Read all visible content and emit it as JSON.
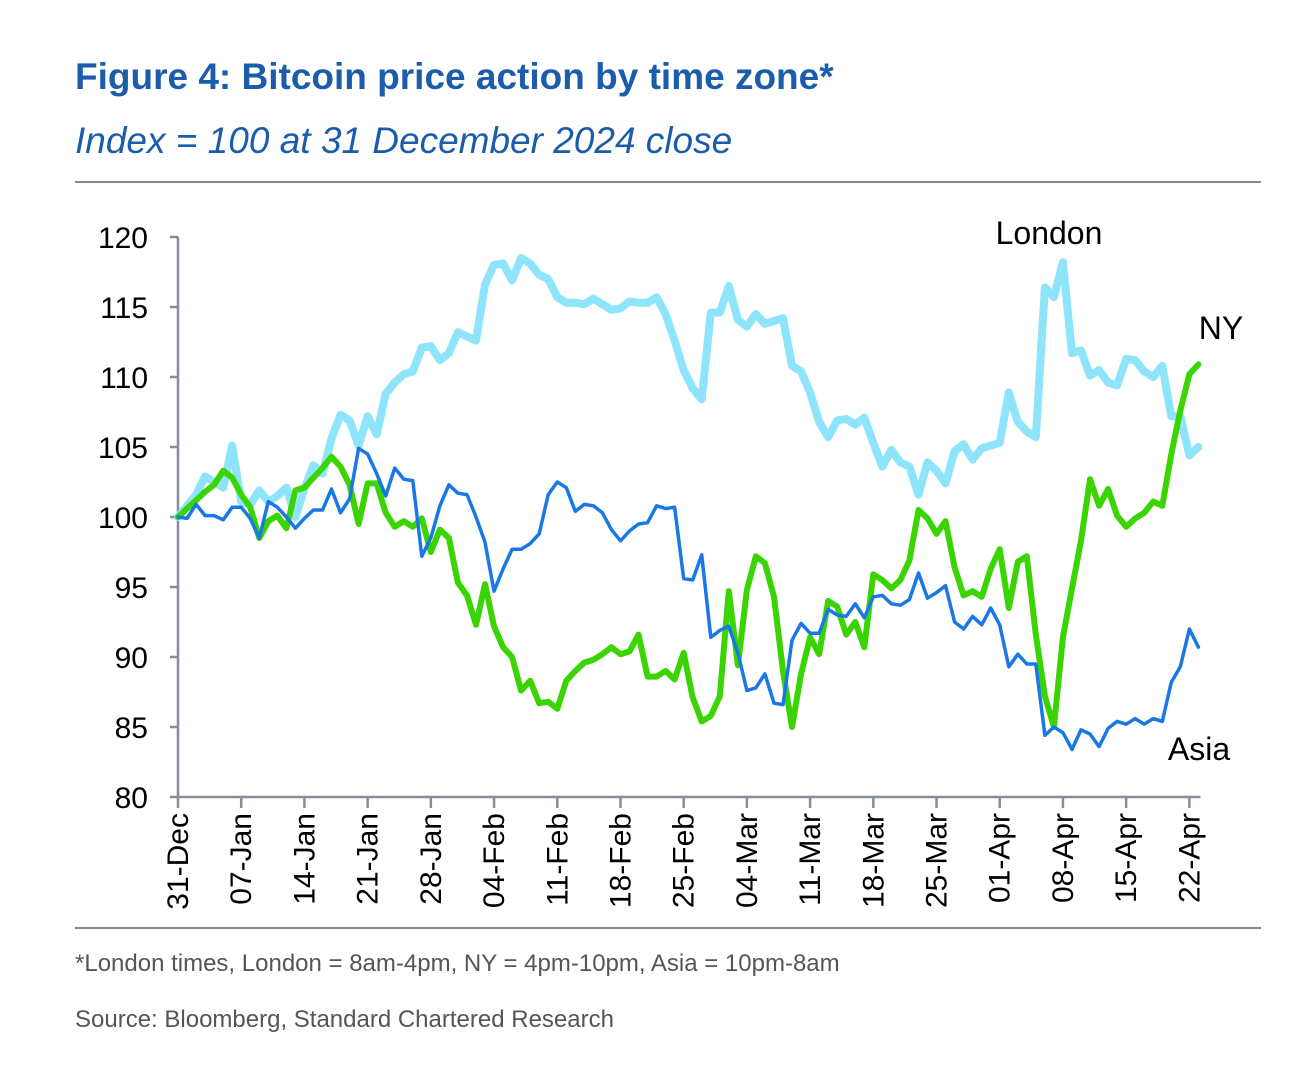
{
  "header": {
    "title": "Figure 4: Bitcoin price action by time zone*",
    "subtitle": "Index = 100 at 31 December 2024 close"
  },
  "footer": {
    "note": "*London times, London = 8am-4pm, NY = 4pm-10pm, Asia = 10pm-8am",
    "source": "Source: Bloomberg, Standard Chartered Research"
  },
  "chart_data": {
    "type": "line",
    "title": "",
    "xlabel": "",
    "ylabel": "",
    "ylim": [
      80,
      120
    ],
    "yticks": [
      80,
      85,
      90,
      95,
      100,
      105,
      110,
      115,
      120
    ],
    "xticks": [
      "31-Dec",
      "07-Jan",
      "14-Jan",
      "21-Jan",
      "28-Jan",
      "04-Feb",
      "11-Feb",
      "18-Feb",
      "25-Feb",
      "04-Mar",
      "11-Mar",
      "18-Mar",
      "25-Mar",
      "01-Apr",
      "08-Apr",
      "15-Apr",
      "22-Apr"
    ],
    "grid": false,
    "legend": "inline labels",
    "x": [
      "31-Dec",
      "01-Jan",
      "02-Jan",
      "03-Jan",
      "04-Jan",
      "05-Jan",
      "06-Jan",
      "07-Jan",
      "08-Jan",
      "09-Jan",
      "10-Jan",
      "11-Jan",
      "12-Jan",
      "13-Jan",
      "14-Jan",
      "15-Jan",
      "16-Jan",
      "17-Jan",
      "18-Jan",
      "19-Jan",
      "20-Jan",
      "21-Jan",
      "22-Jan",
      "23-Jan",
      "24-Jan",
      "25-Jan",
      "26-Jan",
      "27-Jan",
      "28-Jan",
      "29-Jan",
      "30-Jan",
      "31-Jan",
      "01-Feb",
      "02-Feb",
      "03-Feb",
      "04-Feb",
      "05-Feb",
      "06-Feb",
      "07-Feb",
      "08-Feb",
      "09-Feb",
      "10-Feb",
      "11-Feb",
      "12-Feb",
      "13-Feb",
      "14-Feb",
      "15-Feb",
      "16-Feb",
      "17-Feb",
      "18-Feb",
      "19-Feb",
      "20-Feb",
      "21-Feb",
      "22-Feb",
      "23-Feb",
      "24-Feb",
      "25-Feb",
      "26-Feb",
      "27-Feb",
      "28-Feb",
      "01-Mar",
      "02-Mar",
      "03-Mar",
      "04-Mar",
      "05-Mar",
      "06-Mar",
      "07-Mar",
      "08-Mar",
      "09-Mar",
      "10-Mar",
      "11-Mar",
      "12-Mar",
      "13-Mar",
      "14-Mar",
      "15-Mar",
      "16-Mar",
      "17-Mar",
      "18-Mar",
      "19-Mar",
      "20-Mar",
      "21-Mar",
      "22-Mar",
      "23-Mar",
      "24-Mar",
      "25-Mar",
      "26-Mar",
      "27-Mar",
      "28-Mar",
      "29-Mar",
      "30-Mar",
      "31-Mar",
      "01-Apr",
      "02-Apr",
      "03-Apr",
      "04-Apr",
      "05-Apr",
      "06-Apr",
      "07-Apr",
      "08-Apr",
      "09-Apr",
      "10-Apr",
      "11-Apr",
      "12-Apr",
      "13-Apr",
      "14-Apr",
      "15-Apr",
      "16-Apr",
      "17-Apr",
      "18-Apr",
      "19-Apr",
      "20-Apr",
      "21-Apr",
      "22-Apr",
      "23-Apr"
    ],
    "series": [
      {
        "name": "London",
        "color": "#8de4fb",
        "values": [
          100,
          100.8,
          101.6,
          102.9,
          102.5,
          102.1,
          105.1,
          101.1,
          100.9,
          101.9,
          101.1,
          101.5,
          102.1,
          100,
          102,
          103.7,
          103.1,
          105.6,
          107.3,
          106.9,
          105.1,
          107.2,
          105.9,
          108.8,
          109.6,
          110.2,
          110.4,
          112.1,
          112.2,
          111.2,
          111.7,
          113.2,
          112.9,
          112.6,
          116.6,
          118,
          118.1,
          116.9,
          118.5,
          118.1,
          117.3,
          117,
          115.7,
          115.3,
          115.3,
          115.2,
          115.6,
          115.2,
          114.8,
          114.9,
          115.4,
          115.3,
          115.3,
          115.7,
          114.5,
          112.6,
          110.5,
          109.2,
          108.4,
          114.6,
          114.6,
          116.5,
          114.1,
          113.6,
          114.5,
          113.8,
          114,
          114.2,
          110.8,
          110.4,
          108.9,
          106.8,
          105.7,
          106.9,
          107,
          106.6,
          107.1,
          105.3,
          103.6,
          104.8,
          103.9,
          103.6,
          101.6,
          103.9,
          103.3,
          102.4,
          104.7,
          105.2,
          104.1,
          104.9,
          105.1,
          105.3,
          108.9,
          106.8,
          106.1,
          105.7,
          116.4,
          115.7,
          118.2,
          111.7,
          111.9,
          110.1,
          110.5,
          109.6,
          109.4,
          111.3,
          111.2,
          110.4,
          110,
          110.8,
          107.2,
          107.2,
          104.4,
          105
        ]
      },
      {
        "name": "NY",
        "color": "#3ad400",
        "values": [
          100,
          100.6,
          101.2,
          101.8,
          102.3,
          103.3,
          102.8,
          101.6,
          100.7,
          98.5,
          99.7,
          100.1,
          99.2,
          101.9,
          102.1,
          102.8,
          103.5,
          104.3,
          103.6,
          102.3,
          99.5,
          102.4,
          102.4,
          100.3,
          99.3,
          99.7,
          99.3,
          99.9,
          97.5,
          99.1,
          98.5,
          95.3,
          94.4,
          92.3,
          95.2,
          92.2,
          90.7,
          90,
          87.6,
          88.3,
          86.7,
          86.8,
          86.3,
          88.3,
          89,
          89.6,
          89.8,
          90.2,
          90.7,
          90.2,
          90.4,
          91.6,
          88.6,
          88.6,
          89,
          88.4,
          90.3,
          87.1,
          85.4,
          85.8,
          87.2,
          94.7,
          89.4,
          94.8,
          97.2,
          96.7,
          94.3,
          89,
          85,
          88.8,
          91.4,
          90.2,
          94,
          93.6,
          91.6,
          92.5,
          90.7,
          95.9,
          95.5,
          94.9,
          95.5,
          96.9,
          100.5,
          99.9,
          98.8,
          99.7,
          96.4,
          94.4,
          94.7,
          94.3,
          96.3,
          97.7,
          93.5,
          96.8,
          97.2,
          91.6,
          87.2,
          85,
          91.4,
          94.9,
          98.3,
          102.7,
          100.8,
          102,
          100.1,
          99.3,
          99.9,
          100.3,
          101.1,
          100.8,
          104.5,
          107.6,
          110.2,
          110.9
        ]
      },
      {
        "name": "Asia",
        "color": "#1a78e6",
        "values": [
          100,
          99.9,
          100.9,
          100.1,
          100.1,
          99.8,
          100.7,
          100.7,
          99.9,
          98.5,
          101.1,
          100.7,
          100,
          99.2,
          99.9,
          100.5,
          100.5,
          102,
          100.3,
          101.3,
          104.9,
          104.5,
          103.1,
          101.5,
          103.5,
          102.7,
          102.6,
          97.2,
          98.5,
          100.8,
          102.3,
          101.7,
          101.6,
          100,
          98.2,
          94.7,
          96.3,
          97.7,
          97.7,
          98.1,
          98.8,
          101.6,
          102.5,
          102.1,
          100.4,
          100.9,
          100.8,
          100.3,
          99.1,
          98.3,
          99,
          99.5,
          99.6,
          100.8,
          100.6,
          100.7,
          95.6,
          95.5,
          97.3,
          91.4,
          91.9,
          92.2,
          90.3,
          87.6,
          87.8,
          88.8,
          86.7,
          86.6,
          91.2,
          92.4,
          91.7,
          91.7,
          93.4,
          93,
          92.9,
          93.8,
          92.8,
          94.3,
          94.4,
          93.8,
          93.7,
          94.1,
          96,
          94.2,
          94.6,
          95.1,
          92.5,
          92,
          92.9,
          92.3,
          93.5,
          92.3,
          89.3,
          90.2,
          89.5,
          89.5,
          84.4,
          85,
          84.6,
          83.4,
          84.8,
          84.5,
          83.6,
          84.9,
          85.4,
          85.2,
          85.6,
          85.2,
          85.6,
          85.4,
          88.2,
          89.3,
          92,
          90.7
        ]
      }
    ]
  }
}
